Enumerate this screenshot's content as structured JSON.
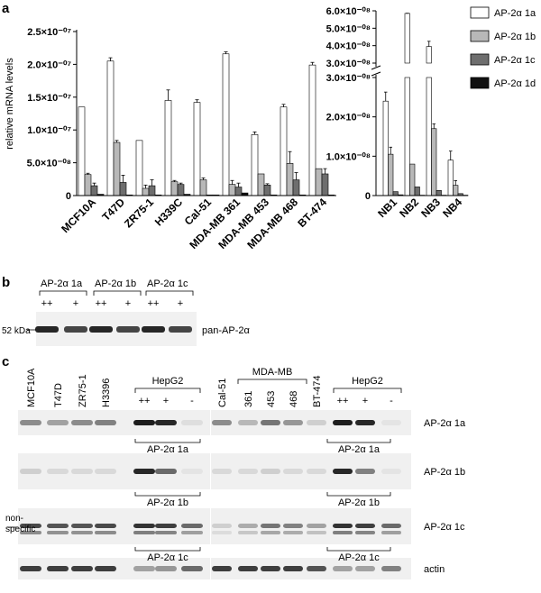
{
  "panel_labels": {
    "a": "a",
    "b": "b",
    "c": "c"
  },
  "chart_data": [
    {
      "type": "bar",
      "ylabel": "relative mRNA levels",
      "ylim": [
        0,
        2.5e-07
      ],
      "yticks": [
        "0",
        "5.0×10⁻⁰⁸",
        "1.0×10⁻⁰⁷",
        "1.5×10⁻⁰⁷",
        "2.0×10⁻⁰⁷",
        "2.5×10⁻⁰⁷"
      ],
      "categories": [
        "MCF10A",
        "T47D",
        "ZR75-1",
        "H339C",
        "Cal-51",
        "MDA-MB 361",
        "MDA-MB 453",
        "MDA-MB 468",
        "BT-474"
      ],
      "series": [
        {
          "name": "AP-2α 1a",
          "color": "#ffffff",
          "values": [
            1.35e-07,
            2.05e-07,
            8.4e-08,
            1.45e-07,
            1.42e-07,
            2.16e-07,
            9.3e-08,
            1.35e-07,
            1.99e-07
          ],
          "errors": [
            0,
            5e-09,
            0,
            1.6e-08,
            4e-09,
            3e-09,
            4e-09,
            4e-09,
            4e-09
          ]
        },
        {
          "name": "AP-2α 1b",
          "color": "#b8b8b8",
          "values": [
            3.2e-08,
            8.1e-08,
            1.1e-08,
            2.1e-08,
            2.4e-08,
            1.7e-08,
            3.3e-08,
            4.9e-08,
            4.1e-08
          ],
          "errors": [
            2e-09,
            3e-09,
            5e-09,
            2e-09,
            3e-09,
            6e-09,
            0,
            1.8e-08,
            0
          ]
        },
        {
          "name": "AP-2α 1c",
          "color": "#6e6e6e",
          "values": [
            1.5e-08,
            2e-08,
            1.5e-08,
            1.7e-08,
            1e-09,
            1.3e-08,
            1.6e-08,
            2.4e-08,
            3.3e-08
          ],
          "errors": [
            4e-09,
            1.1e-08,
            9e-09,
            2e-09,
            0,
            6e-09,
            2e-09,
            1.1e-08,
            8e-09
          ]
        },
        {
          "name": "AP-2α 1d",
          "color": "#111111",
          "values": [
            2e-09,
            1e-09,
            1e-09,
            2e-09,
            1e-09,
            4e-09,
            1e-09,
            1e-09,
            1e-09
          ],
          "errors": [
            0,
            0,
            0,
            0,
            0,
            0,
            0,
            0,
            0
          ]
        }
      ]
    },
    {
      "type": "bar",
      "axis_break": true,
      "ylim_lower": [
        0,
        3e-08
      ],
      "ylim_upper": [
        3e-08,
        6e-08
      ],
      "yticks_lower": [
        "0",
        "1.0×10⁻⁰⁸",
        "2.0×10⁻⁰⁸",
        "3.0×10⁻⁰⁸"
      ],
      "yticks_upper": [
        "3.0×10⁻⁰⁸",
        "4.0×10⁻⁰⁸",
        "5.0×10⁻⁰⁸",
        "6.0×10⁻⁰⁸"
      ],
      "categories": [
        "NB1",
        "NB2",
        "NB3",
        "NB4"
      ],
      "series": [
        {
          "name": "AP-2α 1a",
          "color": "#ffffff",
          "values": [
            2.4e-08,
            5.85e-08,
            3.95e-08,
            9e-09
          ],
          "errors": [
            2.3e-09,
            1e-10,
            3e-09,
            2.3e-09
          ]
        },
        {
          "name": "AP-2α 1b",
          "color": "#b8b8b8",
          "values": [
            1.05e-08,
            8e-09,
            1.7e-08,
            2.6e-09
          ],
          "errors": [
            1.8e-09,
            0,
            1.2e-09,
            1.2e-09
          ]
        },
        {
          "name": "AP-2α 1c",
          "color": "#6e6e6e",
          "values": [
            1e-09,
            2.2e-09,
            1.3e-09,
            5e-10
          ],
          "errors": [
            0,
            0,
            0,
            0
          ]
        },
        {
          "name": "AP-2α 1d",
          "color": "#111111",
          "values": [
            2e-10,
            1e-10,
            1e-10,
            1e-10
          ],
          "errors": [
            0,
            0,
            0,
            0
          ]
        }
      ]
    }
  ],
  "legend": [
    {
      "label": "AP-2α 1a",
      "color": "#ffffff"
    },
    {
      "label": "AP-2α 1b",
      "color": "#b8b8b8"
    },
    {
      "label": "AP-2α 1c",
      "color": "#6e6e6e"
    },
    {
      "label": "AP-2α 1d",
      "color": "#111111"
    }
  ],
  "panel_b": {
    "groups": [
      "AP-2α 1a",
      "AP-2α 1b",
      "AP-2α 1c"
    ],
    "lane_labels": [
      "++",
      "+",
      "++",
      "+",
      "++",
      "+"
    ],
    "marker": "52 kDa",
    "antibody": "pan-AP-2α"
  },
  "panel_c": {
    "left_lanes": [
      "MCF10A",
      "T47D",
      "ZR75-1",
      "H3396"
    ],
    "hepg2": "HepG2",
    "hepg2_lanes": [
      "++",
      "+",
      "-"
    ],
    "mda_group": "MDA-MB",
    "right_lanes": [
      "Cal-51",
      "361",
      "453",
      "468",
      "BT-474"
    ],
    "nonspecific": "non-\nspecific",
    "rows": [
      "AP-2α 1a",
      "AP-2α 1b",
      "AP-2α 1c",
      "actin"
    ],
    "sublabels": [
      "AP-2α 1a",
      "AP-2α 1b",
      "AP-2α 1c"
    ]
  }
}
